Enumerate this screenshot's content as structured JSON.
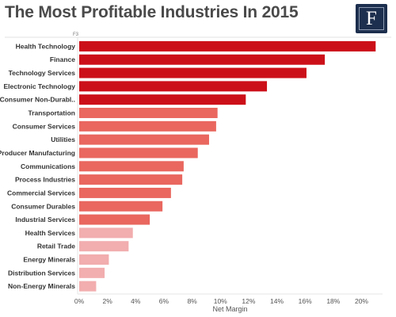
{
  "title": "The Most Profitable Industries In 2015",
  "logo_letter": "F",
  "axis_tag": "F3",
  "chart_data": {
    "type": "bar",
    "orientation": "horizontal",
    "title": "The Most Profitable Industries In 2015",
    "xlabel": "Net Margin",
    "ylabel": "",
    "xlim": [
      0,
      21.6
    ],
    "x_ticks": [
      0,
      2,
      4,
      6,
      8,
      10,
      12,
      14,
      16,
      18,
      20
    ],
    "tick_format": "{v}%",
    "grid": false,
    "categories": [
      "Health Technology",
      "Finance",
      "Technology Services",
      "Electronic Technology",
      "Consumer Non-Durabl..",
      "Transportation",
      "Consumer Services",
      "Utilities",
      "Producer Manufacturing",
      "Communications",
      "Process Industries",
      "Commercial Services",
      "Consumer Durables",
      "Industrial Services",
      "Health Services",
      "Retail Trade",
      "Energy Minerals",
      "Distribution Services",
      "Non-Energy Minerals"
    ],
    "values": [
      21.0,
      17.4,
      16.1,
      13.3,
      11.8,
      9.8,
      9.7,
      9.2,
      8.4,
      7.4,
      7.3,
      6.5,
      5.9,
      5.0,
      3.8,
      3.5,
      2.1,
      1.8,
      1.2
    ],
    "colors": [
      "#cc1019",
      "#cc1019",
      "#cc1019",
      "#cc1019",
      "#cc1019",
      "#e9675f",
      "#e9675f",
      "#e9675f",
      "#e9675f",
      "#e9675f",
      "#e9675f",
      "#e9675f",
      "#e9675f",
      "#e9675f",
      "#f2adae",
      "#f2adae",
      "#f2adae",
      "#f2adae",
      "#f2adae"
    ]
  }
}
